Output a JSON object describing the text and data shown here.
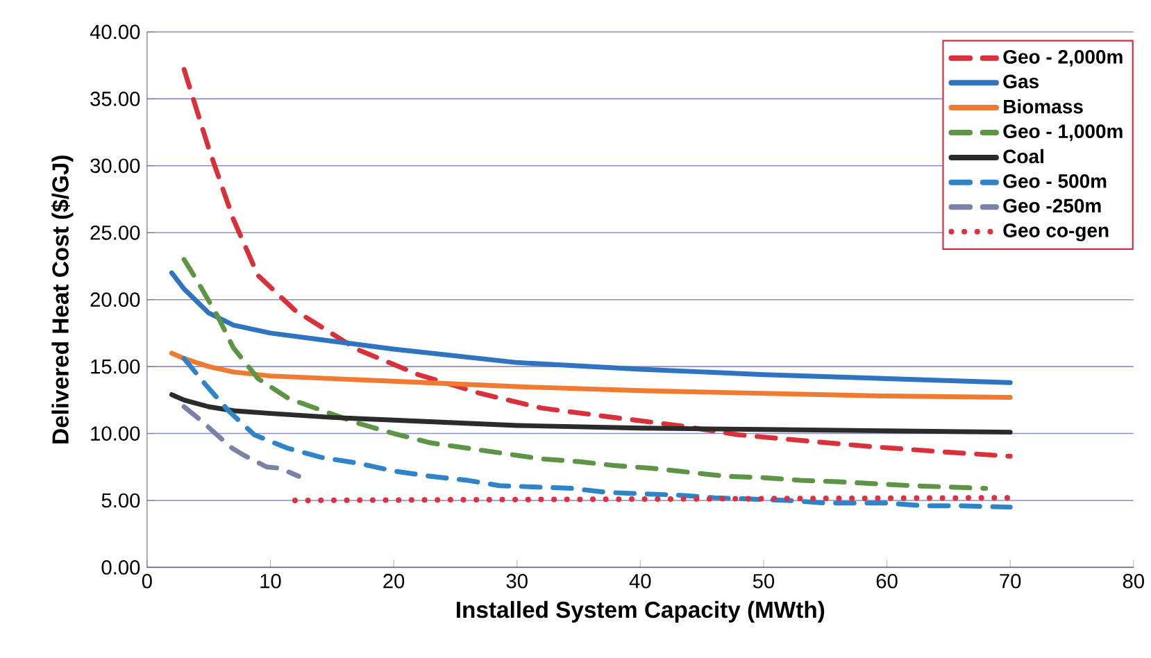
{
  "chart_data": {
    "type": "line",
    "xlabel": "Installed System Capacity (MWth)",
    "ylabel": "Delivered Heat Cost ($/GJ)",
    "xlim": [
      0,
      80
    ],
    "xticks": [
      0,
      10,
      20,
      30,
      40,
      50,
      60,
      70,
      80
    ],
    "ylim": [
      0,
      40
    ],
    "yticks": [
      {
        "value": 0,
        "label": "0.00"
      },
      {
        "value": 5,
        "label": "5.00"
      },
      {
        "value": 10,
        "label": "10.00"
      },
      {
        "value": 15,
        "label": "15.00"
      },
      {
        "value": 20,
        "label": "20.00"
      },
      {
        "value": 25,
        "label": "25.00"
      },
      {
        "value": 30,
        "label": "30.00"
      },
      {
        "value": 35,
        "label": "35.00"
      },
      {
        "value": 40,
        "label": "40.00"
      }
    ],
    "grid": "y",
    "legend": "top right",
    "marker": "none",
    "series": [
      {
        "name": "Geo - 2,000m",
        "color": "#d9303a",
        "line_style": "dashed",
        "x": [
          3,
          5,
          7,
          9,
          12,
          17,
          22,
          27,
          32,
          37,
          43,
          48,
          54,
          59,
          65,
          70
        ],
        "values": [
          37.2,
          31.3,
          26.0,
          21.8,
          19.2,
          16.3,
          14.4,
          13.0,
          11.9,
          11.3,
          10.6,
          9.9,
          9.4,
          9.0,
          8.6,
          8.3
        ]
      },
      {
        "name": "Gas",
        "color": "#2f74c0",
        "line_style": "solid",
        "x": [
          2,
          3,
          5,
          7,
          10,
          15,
          20,
          30,
          40,
          50,
          60,
          70
        ],
        "values": [
          22.0,
          20.8,
          19.0,
          18.1,
          17.5,
          16.9,
          16.3,
          15.3,
          14.8,
          14.4,
          14.1,
          13.8
        ]
      },
      {
        "name": "Biomass",
        "color": "#f07a30",
        "line_style": "solid",
        "x": [
          2,
          3,
          5,
          7,
          10,
          15,
          20,
          30,
          40,
          50,
          60,
          70
        ],
        "values": [
          16.0,
          15.6,
          15.0,
          14.6,
          14.3,
          14.1,
          13.9,
          13.5,
          13.2,
          13.0,
          12.8,
          12.7
        ]
      },
      {
        "name": "Geo - 1,000m",
        "color": "#5e9445",
        "line_style": "dashed",
        "x": [
          3,
          4,
          5.7,
          7,
          9,
          11.5,
          17,
          20,
          23,
          26,
          32,
          35,
          38,
          41,
          47,
          50,
          53,
          56,
          62,
          65,
          68
        ],
        "values": [
          23.0,
          21.5,
          18.8,
          16.4,
          14.1,
          12.6,
          10.8,
          10.0,
          9.3,
          8.9,
          8.1,
          7.9,
          7.6,
          7.4,
          6.8,
          6.7,
          6.5,
          6.4,
          6.1,
          6.0,
          5.9
        ]
      },
      {
        "name": "Coal",
        "color": "#2b2b2b",
        "line_style": "solid",
        "x": [
          2,
          3,
          5,
          7,
          10,
          15,
          20,
          30,
          40,
          50,
          60,
          70
        ],
        "values": [
          12.9,
          12.5,
          12.0,
          11.7,
          11.5,
          11.2,
          11.0,
          10.6,
          10.4,
          10.3,
          10.2,
          10.1
        ]
      },
      {
        "name": "Geo - 500m",
        "color": "#2d84c8",
        "line_style": "dashed",
        "x": [
          3,
          4.7,
          6.6,
          8.7,
          11.4,
          14.2,
          17,
          20,
          23,
          26,
          28.6,
          31.6,
          34.5,
          37.3,
          40,
          43,
          46,
          49,
          52,
          55,
          60,
          63,
          66,
          70
        ],
        "values": [
          15.6,
          13.7,
          11.7,
          9.9,
          8.9,
          8.2,
          7.8,
          7.2,
          6.8,
          6.5,
          6.1,
          6.0,
          5.9,
          5.6,
          5.5,
          5.4,
          5.2,
          5.1,
          5.0,
          4.8,
          4.8,
          4.6,
          4.6,
          4.5
        ]
      },
      {
        "name": "Geo -250m",
        "color": "#7a82a8",
        "line_style": "dashed",
        "x": [
          3,
          4.6,
          5.3,
          6.9,
          7.8,
          9.7,
          10.8,
          12.3
        ],
        "values": [
          12.0,
          10.8,
          10.2,
          8.9,
          8.4,
          7.5,
          7.4,
          6.8
        ]
      },
      {
        "name": "Geo co-gen",
        "color": "#e03040",
        "line_style": "dotted",
        "x": [
          12,
          40,
          70
        ],
        "values": [
          5.0,
          5.1,
          5.2
        ]
      }
    ]
  }
}
